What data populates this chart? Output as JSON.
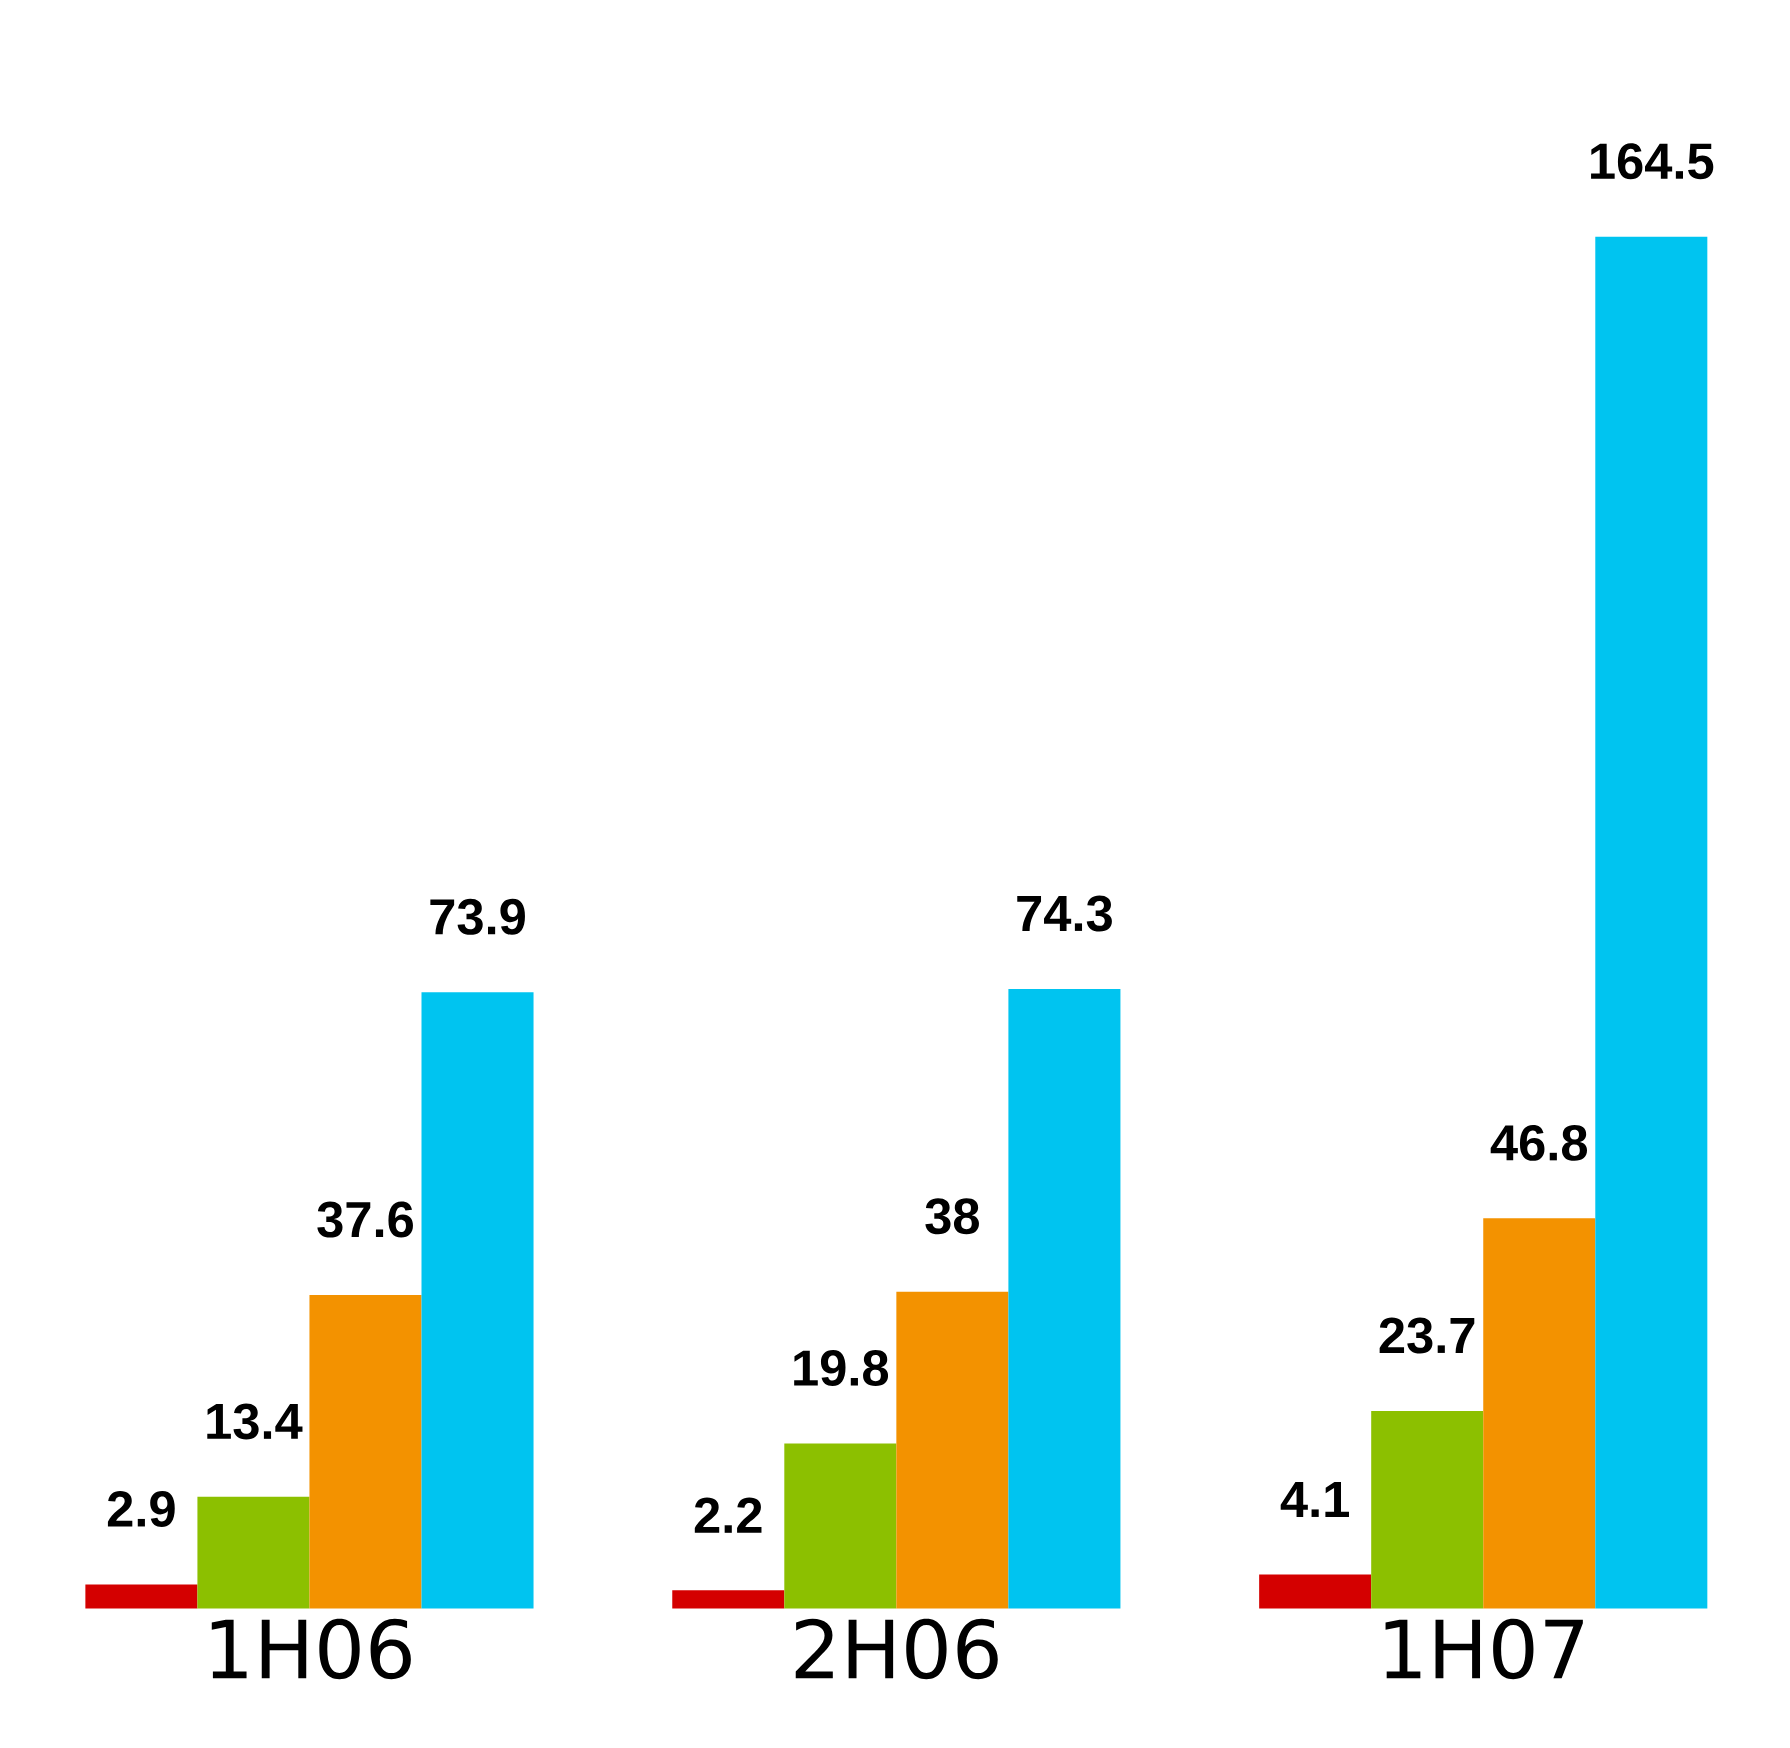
{
  "chart_data": {
    "type": "bar",
    "categories": [
      "1H06",
      "2H06",
      "1H07"
    ],
    "series": [
      {
        "color": "#d40000",
        "values": [
          2.9,
          2.2,
          4.1
        ]
      },
      {
        "color": "#8cc000",
        "values": [
          13.4,
          19.8,
          23.7
        ]
      },
      {
        "color": "#f39200",
        "values": [
          37.6,
          38,
          46.8
        ]
      },
      {
        "color": "#00c4f0",
        "values": [
          73.9,
          74.3,
          164.5
        ]
      }
    ],
    "data_labels": true,
    "tick_labels": "x"
  }
}
